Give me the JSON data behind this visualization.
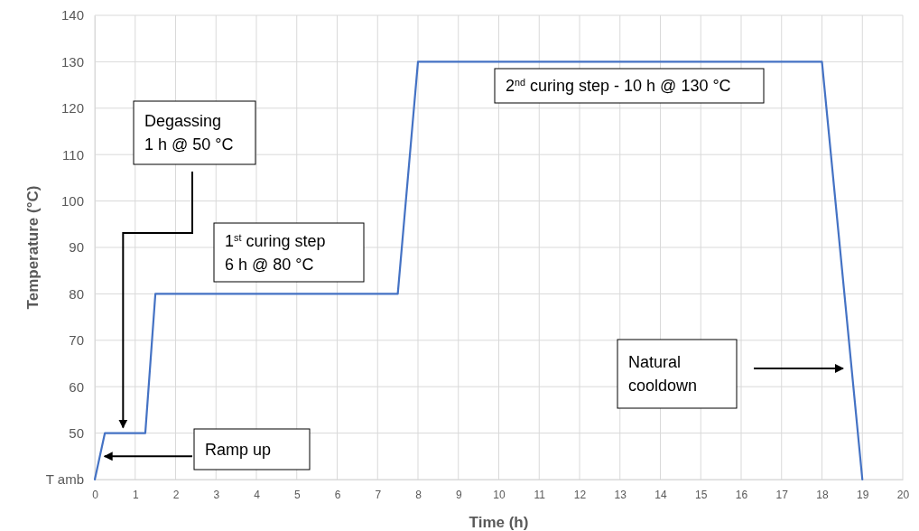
{
  "chart_data": {
    "type": "line",
    "xlabel": "Time (h)",
    "ylabel": "Temperature (°C)",
    "x": [
      0,
      0.25,
      1.25,
      1.5,
      7.5,
      8,
      18,
      19
    ],
    "series": [
      {
        "color": "#4472c4",
        "values": [
          40,
          50,
          50,
          80,
          80,
          130,
          130,
          40
        ]
      }
    ],
    "xlim": [
      0,
      20
    ],
    "xticks": [
      0,
      1,
      2,
      3,
      4,
      5,
      6,
      7,
      8,
      9,
      10,
      11,
      12,
      13,
      14,
      15,
      16,
      17,
      18,
      19,
      20
    ],
    "ylim": [
      40,
      140
    ],
    "yticks": [
      {
        "value": 40,
        "label": "T amb"
      },
      50,
      60,
      70,
      80,
      90,
      100,
      110,
      120,
      130,
      140
    ],
    "grid": true,
    "marker": "none",
    "line_style": "solid",
    "annotations": [
      {
        "text": "Degassing\n1 h @ 50 °C",
        "x": 0.7,
        "y": 50
      },
      "1$^{st}$ curing step\n6 h @ 80 °C",
      "2$^{nd}$ curing step - 10 h @ 130 °C",
      {
        "text": "Ramp up",
        "x": 0.15,
        "y": 45
      },
      "Natural\ncooldown"
    ]
  }
}
